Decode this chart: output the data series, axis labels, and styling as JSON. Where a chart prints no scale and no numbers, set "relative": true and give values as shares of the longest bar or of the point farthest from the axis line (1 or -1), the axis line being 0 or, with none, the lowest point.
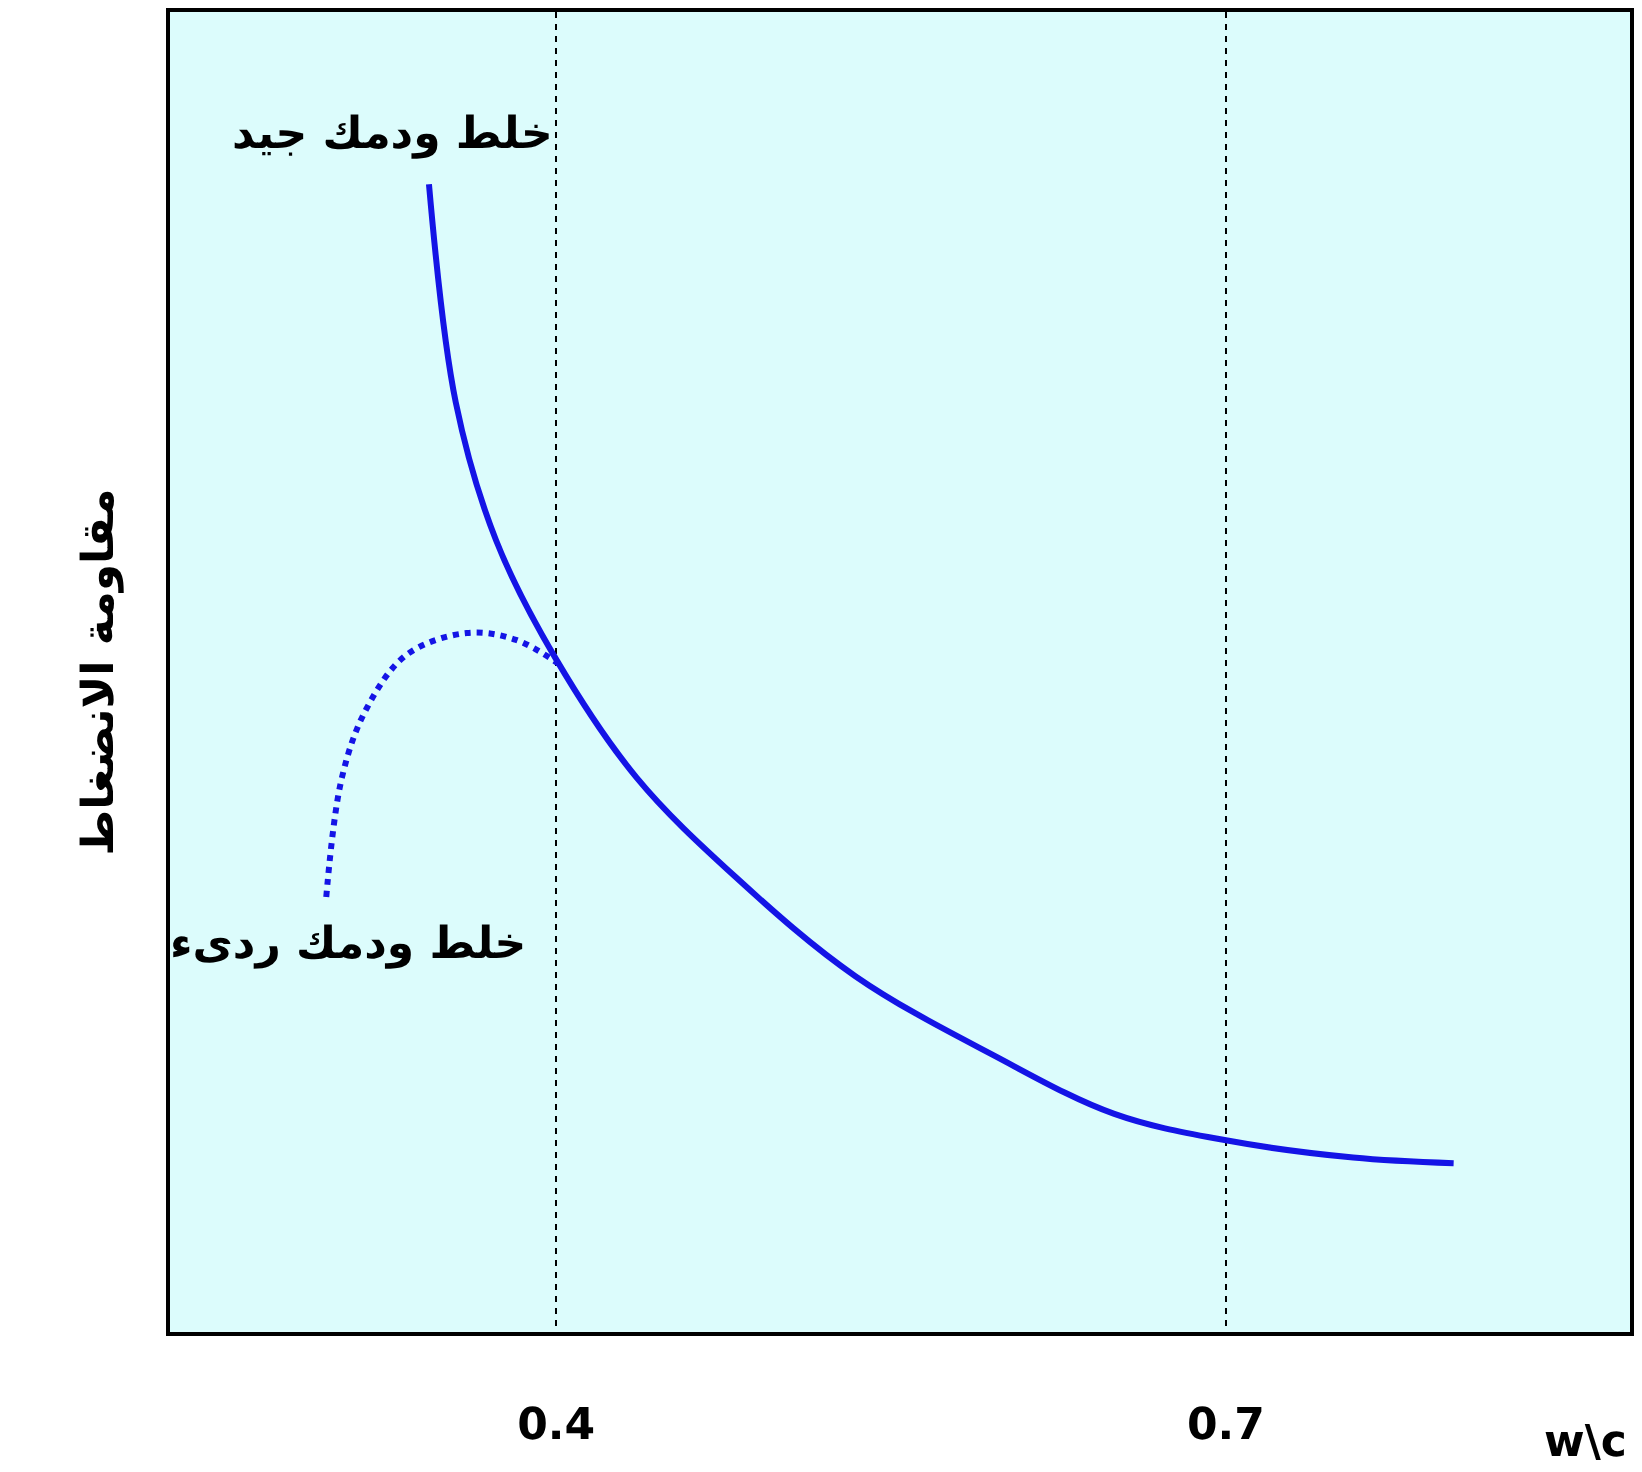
{
  "chart_data": {
    "type": "line",
    "relative": true,
    "xlabel": "w\\c",
    "ylabel": "مقاومة الانضغاط",
    "xlim": [
      0.227,
      0.881
    ],
    "xticks": [
      0.4,
      0.7
    ],
    "grid": "x",
    "legend": false,
    "marker": "none",
    "series": [
      {
        "name": "خلط ودمك جيد",
        "color": "#1414e6",
        "line_style": "solid",
        "x": [
          0.343,
          0.355,
          0.373,
          0.4,
          0.436,
          0.48,
          0.534,
          0.596,
          0.65,
          0.7,
          0.757,
          0.802
        ],
        "values": [
          1,
          0.81,
          0.69,
          0.586,
          0.483,
          0.397,
          0.31,
          0.241,
          0.19,
          0.167,
          0.152,
          0.147
        ]
      },
      {
        "name": "خلط ودمك ردىء",
        "color": "#1414e6",
        "line_style": "dotted",
        "x": [
          0.297,
          0.304,
          0.315,
          0.333,
          0.36,
          0.382,
          0.402
        ],
        "values": [
          0.379,
          0.483,
          0.543,
          0.59,
          0.609,
          0.603,
          0.581
        ]
      }
    ]
  }
}
